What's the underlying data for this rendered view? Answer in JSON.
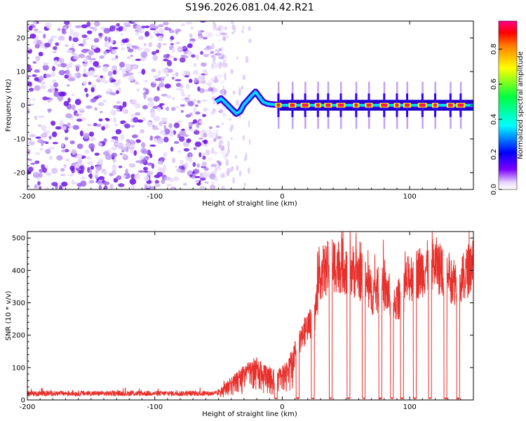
{
  "title": "S196.2026.081.04.42.R21",
  "chart_data": [
    {
      "type": "heatmap",
      "title": "S196.2026.081.04.42.R21",
      "xlabel": "Height of straight line (km)",
      "ylabel": "Frequency (Hz)",
      "xlim": [
        -200,
        150
      ],
      "ylim": [
        -25,
        25
      ],
      "xticks": [
        -200,
        -100,
        0,
        100
      ],
      "xtick_labels": [
        "-200",
        "-100",
        "0",
        "100"
      ],
      "yticks": [
        -20,
        -10,
        0,
        10,
        20
      ],
      "ytick_labels": [
        "-20",
        "-10",
        "0",
        "10",
        "20"
      ],
      "colorbar": {
        "label": "Normalized spectral amplitude",
        "range": [
          0,
          0.96
        ],
        "ticks": [
          0.0,
          0.2,
          0.4,
          0.6,
          0.8
        ],
        "tick_labels": [
          "0.0",
          "0.2",
          "0.4",
          "0.6",
          "0.8"
        ],
        "colors": [
          "#ffffff",
          "#6a00ff",
          "#0000ff",
          "#00ffff",
          "#00ff00",
          "#ffff00",
          "#ff8000",
          "#ff0000",
          "#ff0080"
        ]
      },
      "noise_region_x": [
        -200,
        -50
      ],
      "ridge_line": {
        "name": "peak frequency",
        "x": [
          -52,
          -48,
          -44,
          -40,
          -36,
          -33,
          -30,
          -27,
          -24,
          -21,
          -18,
          -15,
          -12,
          -9,
          -6,
          -3,
          0,
          10,
          30,
          60,
          90,
          120,
          150
        ],
        "y": [
          1.0,
          2.0,
          0.5,
          -1.0,
          -2.5,
          -1.8,
          0.3,
          1.5,
          2.8,
          4.0,
          2.5,
          1.0,
          0.5,
          0.3,
          0.2,
          0.1,
          0.0,
          0.0,
          0.0,
          0.0,
          0.0,
          0.0,
          0.0
        ]
      },
      "hotspots_x": [
        -3,
        8,
        18,
        28,
        36,
        46,
        58,
        68,
        80,
        90,
        98,
        110,
        120,
        132,
        140
      ]
    },
    {
      "type": "line",
      "xlabel": "Height of straight line (km)",
      "ylabel": "SNR (10 * v/v)",
      "xlim": [
        -200,
        150
      ],
      "ylim": [
        0,
        520
      ],
      "xticks": [
        -200,
        -100,
        0,
        100
      ],
      "xtick_labels": [
        "-200",
        "-100",
        "0",
        "100"
      ],
      "yticks": [
        0,
        100,
        200,
        300,
        400,
        500
      ],
      "ytick_labels": [
        "0",
        "100",
        "200",
        "300",
        "400",
        "500"
      ],
      "series": [
        {
          "name": "SNR",
          "color": "#e8302c",
          "envelope": {
            "x": [
              -200,
              -150,
              -100,
              -60,
              -50,
              -40,
              -30,
              -20,
              -10,
              0,
              5,
              10,
              20,
              25,
              30,
              40,
              50,
              60,
              70,
              80,
              90,
              100,
              110,
              120,
              130,
              140,
              150
            ],
            "y": [
              20,
              20,
              20,
              20,
              25,
              60,
              90,
              110,
              80,
              85,
              110,
              150,
              230,
              250,
              390,
              420,
              410,
              390,
              330,
              340,
              300,
              380,
              400,
              420,
              380,
              360,
              430
            ]
          },
          "dropouts_x": [
            -25,
            -5,
            12,
            24,
            38,
            52,
            64,
            77,
            86,
            94,
            104,
            116,
            128,
            138
          ]
        }
      ]
    }
  ]
}
